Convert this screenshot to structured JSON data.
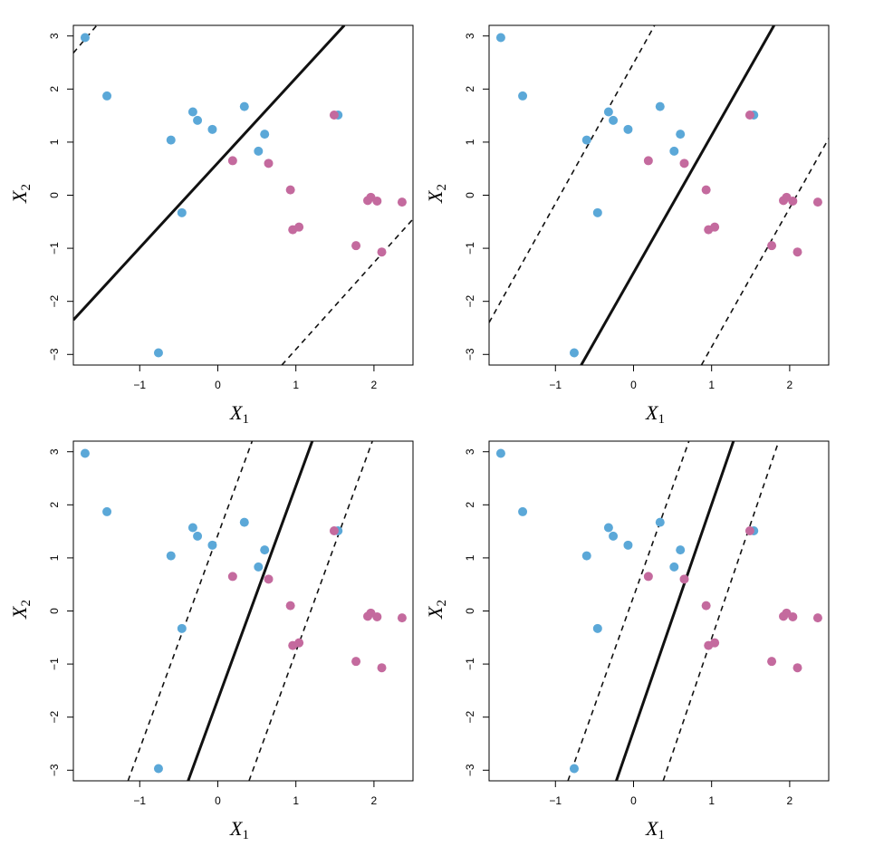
{
  "chart_data": [
    {
      "type": "scatter",
      "xlabel": "X",
      "xlabel_sub": "1",
      "ylabel": "X",
      "ylabel_sub": "2",
      "xlim": [
        -1.85,
        2.5
      ],
      "ylim": [
        -3.2,
        3.2
      ],
      "xticks": [
        -1,
        0,
        1,
        2
      ],
      "yticks": [
        -3,
        -2,
        -1,
        0,
        1,
        2,
        3
      ],
      "grid": false,
      "lines": [
        {
          "style": "solid",
          "points": [
            [
              -1.85,
              -2.35
            ],
            [
              1.62,
              3.2
            ]
          ]
        },
        {
          "style": "dashed",
          "points": [
            [
              -1.85,
              2.68
            ],
            [
              -1.55,
              3.2
            ]
          ]
        },
        {
          "style": "dashed",
          "points": [
            [
              0.82,
              -3.2
            ],
            [
              2.5,
              -0.45
            ]
          ]
        }
      ]
    },
    {
      "type": "scatter",
      "xlabel": "X",
      "xlabel_sub": "1",
      "ylabel": "X",
      "ylabel_sub": "2",
      "xlim": [
        -1.85,
        2.5
      ],
      "ylim": [
        -3.2,
        3.2
      ],
      "xticks": [
        -1,
        0,
        1,
        2
      ],
      "yticks": [
        -3,
        -2,
        -1,
        0,
        1,
        2,
        3
      ],
      "grid": false,
      "lines": [
        {
          "style": "solid",
          "points": [
            [
              -0.67,
              -3.2
            ],
            [
              1.8,
              3.2
            ]
          ]
        },
        {
          "style": "dashed",
          "points": [
            [
              -1.85,
              -2.4
            ],
            [
              0.27,
              3.2
            ]
          ]
        },
        {
          "style": "dashed",
          "points": [
            [
              0.87,
              -3.2
            ],
            [
              2.5,
              1.07
            ]
          ]
        }
      ]
    },
    {
      "type": "scatter",
      "xlabel": "X",
      "xlabel_sub": "1",
      "ylabel": "X",
      "ylabel_sub": "2",
      "xlim": [
        -1.85,
        2.5
      ],
      "ylim": [
        -3.2,
        3.2
      ],
      "xticks": [
        -1,
        0,
        1,
        2
      ],
      "yticks": [
        -3,
        -2,
        -1,
        0,
        1,
        2,
        3
      ],
      "grid": false,
      "lines": [
        {
          "style": "solid",
          "points": [
            [
              -0.38,
              -3.2
            ],
            [
              1.21,
              3.2
            ]
          ]
        },
        {
          "style": "dashed",
          "points": [
            [
              -1.15,
              -3.2
            ],
            [
              0.44,
              3.2
            ]
          ]
        },
        {
          "style": "dashed",
          "points": [
            [
              0.4,
              -3.2
            ],
            [
              1.98,
              3.2
            ]
          ]
        }
      ]
    },
    {
      "type": "scatter",
      "xlabel": "X",
      "xlabel_sub": "1",
      "ylabel": "X",
      "ylabel_sub": "2",
      "xlim": [
        -1.85,
        2.5
      ],
      "ylim": [
        -3.2,
        3.2
      ],
      "xticks": [
        -1,
        0,
        1,
        2
      ],
      "yticks": [
        -3,
        -2,
        -1,
        0,
        1,
        2,
        3
      ],
      "grid": false,
      "lines": [
        {
          "style": "solid",
          "points": [
            [
              -0.22,
              -3.2
            ],
            [
              1.28,
              3.2
            ]
          ]
        },
        {
          "style": "dashed",
          "points": [
            [
              -0.84,
              -3.2
            ],
            [
              0.71,
              3.2
            ]
          ]
        },
        {
          "style": "dashed",
          "points": [
            [
              0.38,
              -3.2
            ],
            [
              1.86,
              3.2
            ]
          ]
        }
      ]
    }
  ],
  "points": {
    "blue": [
      [
        -1.7,
        2.97
      ],
      [
        -1.42,
        1.87
      ],
      [
        -0.32,
        1.57
      ],
      [
        -0.26,
        1.41
      ],
      [
        -0.6,
        1.04
      ],
      [
        -0.07,
        1.24
      ],
      [
        0.34,
        1.67
      ],
      [
        0.6,
        1.15
      ],
      [
        0.52,
        0.83
      ],
      [
        -0.46,
        -0.33
      ],
      [
        -0.76,
        -2.97
      ],
      [
        1.54,
        1.51
      ]
    ],
    "pink": [
      [
        0.19,
        0.65
      ],
      [
        0.65,
        0.6
      ],
      [
        0.93,
        0.1
      ],
      [
        1.49,
        1.51
      ],
      [
        0.96,
        -0.65
      ],
      [
        1.04,
        -0.6
      ],
      [
        1.92,
        -0.1
      ],
      [
        1.96,
        -0.04
      ],
      [
        2.04,
        -0.11
      ],
      [
        2.36,
        -0.13
      ],
      [
        1.77,
        -0.95
      ],
      [
        2.1,
        -1.07
      ]
    ]
  },
  "colors": {
    "blue": "#5ba8d8",
    "pink": "#c46a9e",
    "line": "#111111",
    "axis": "#000000"
  }
}
